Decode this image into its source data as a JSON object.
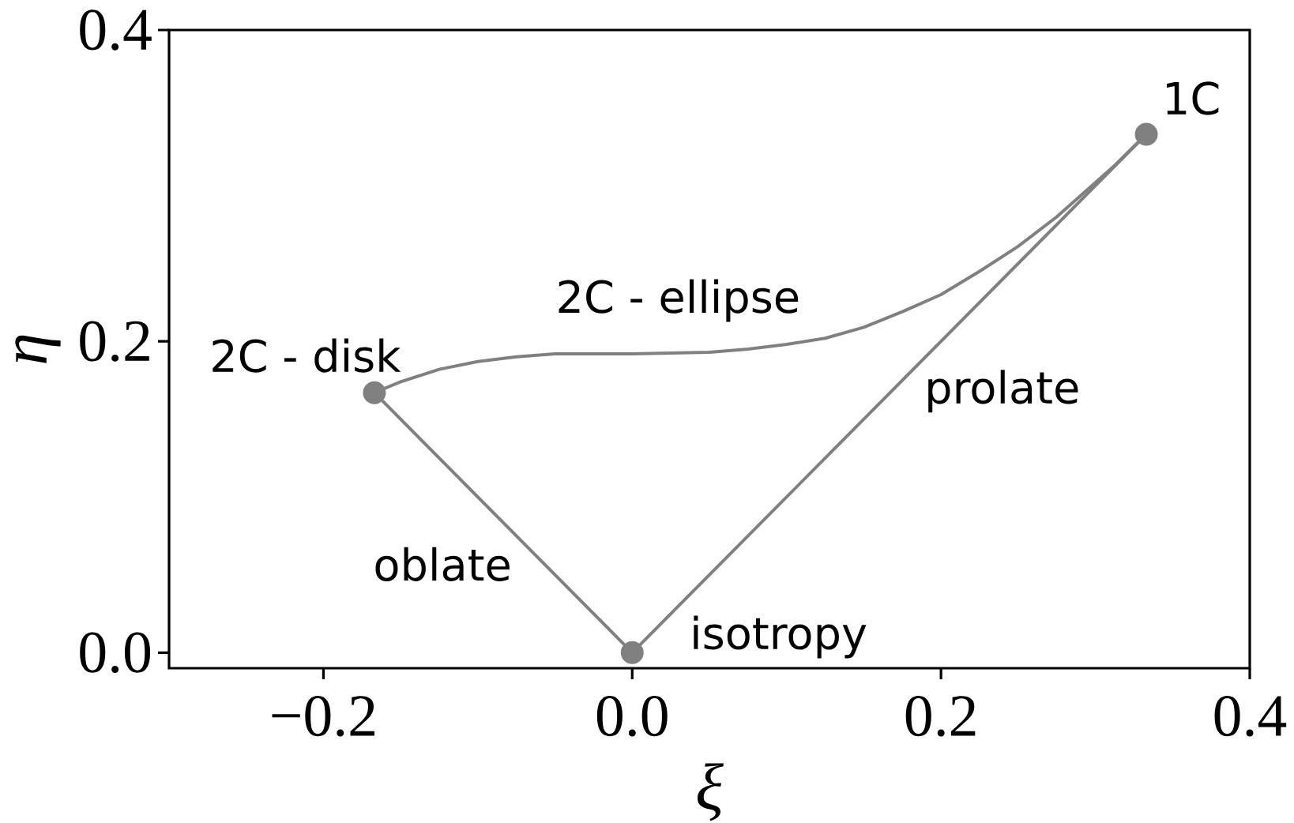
{
  "chart_data": {
    "type": "line",
    "xlabel": "ξ",
    "ylabel": "η",
    "xlim": [
      -0.3,
      0.4
    ],
    "ylim": [
      -0.01,
      0.4
    ],
    "xticks": [
      {
        "value": -0.2,
        "label": "−0.2"
      },
      {
        "value": 0,
        "label": "0.0"
      },
      0.2,
      0.4
    ],
    "yticks": [
      {
        "value": 0,
        "label": "0.0"
      },
      0.2,
      0.4
    ],
    "line_style": "solid",
    "series": [
      {
        "color": "#808080",
        "x": [
          -0.167,
          -0.15,
          -0.125,
          -0.1,
          -0.075,
          -0.05,
          0,
          0.05,
          0.075,
          0.1,
          0.125,
          0.15,
          0.175,
          0.2,
          0.225,
          0.25,
          0.275,
          0.3,
          0.3125,
          0.333
        ],
        "values": [
          0.167,
          0.174,
          0.182,
          0.187,
          0.19,
          0.192,
          0.192,
          0.193,
          0.195,
          0.198,
          0.202,
          0.209,
          0.219,
          0.23,
          0.245,
          0.261,
          0.28,
          0.302,
          0.313,
          0.333
        ]
      },
      {
        "color": "#808080",
        "x": [
          0,
          0.333
        ],
        "values": [
          0,
          0.333
        ]
      },
      {
        "color": "#808080",
        "x": [
          -0.167,
          0
        ],
        "values": [
          0.167,
          0
        ]
      },
      {
        "type": "scatter",
        "marker": "circle",
        "color": "#808080",
        "x": [
          -0.167,
          0,
          0.333
        ],
        "values": [
          0.167,
          0,
          0.333
        ]
      }
    ],
    "annotations": [
      "1C",
      "2C - disk",
      "2C - ellipse",
      "prolate",
      "oblate",
      "isotropy"
    ]
  }
}
